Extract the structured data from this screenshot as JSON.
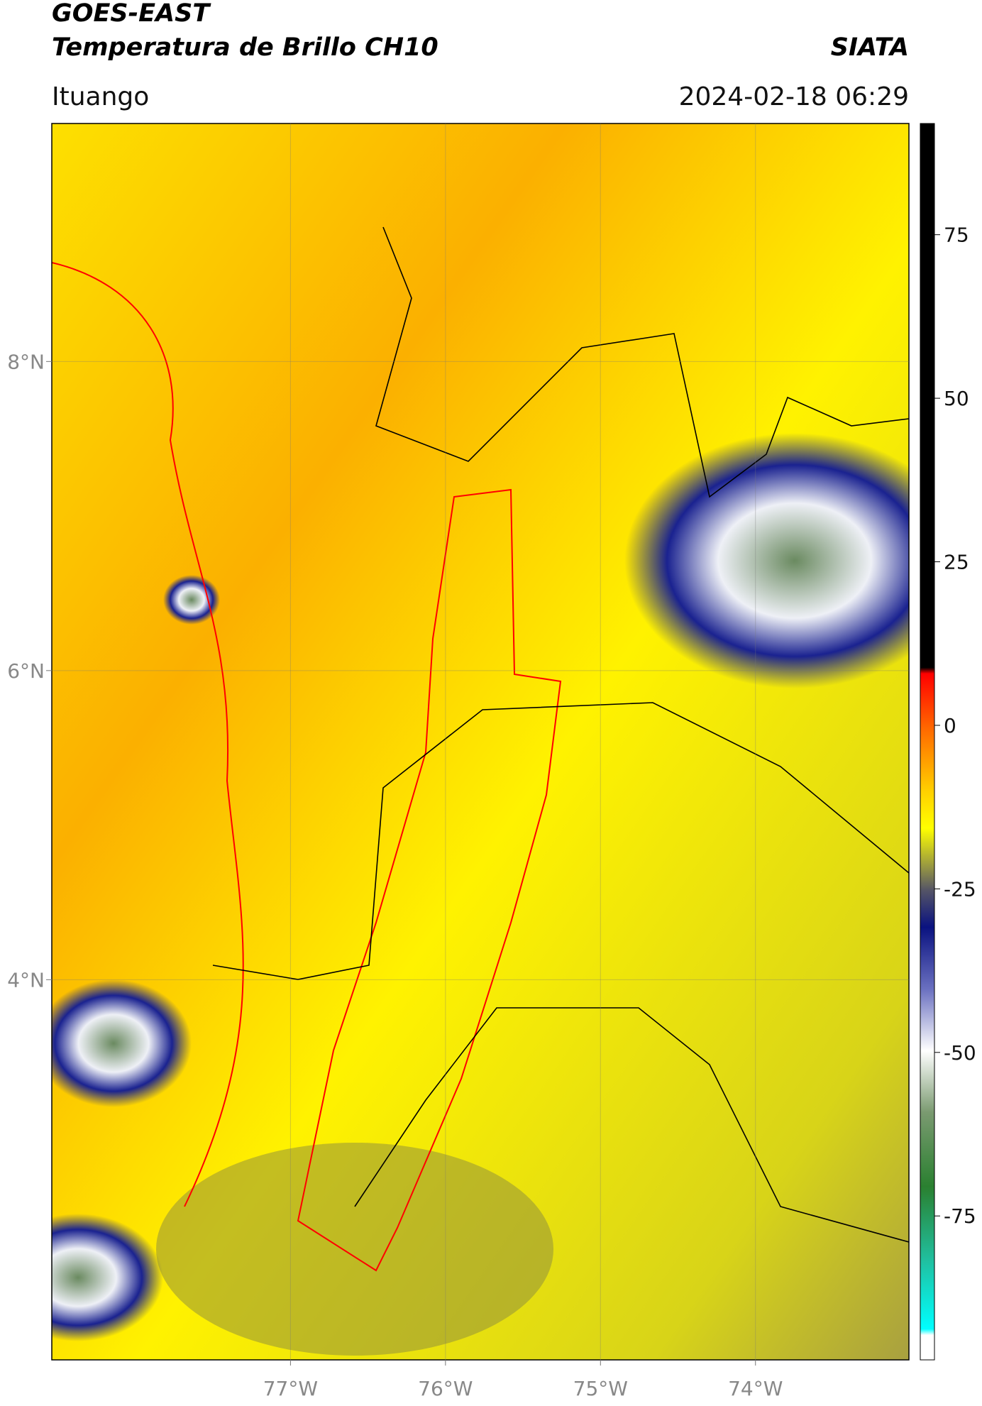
{
  "header": {
    "satellite": "GOES-EAST",
    "product": "Temperatura de Brillo CH10",
    "agency": "SIATA",
    "location": "Ituango",
    "datetime": "2024-02-18 06:29"
  },
  "map": {
    "xlim": [
      -78.54,
      -73.01
    ],
    "ylim": [
      1.54,
      9.54
    ],
    "xticks": [
      {
        "value": -77,
        "label": "77°W"
      },
      {
        "value": -76,
        "label": "76°W"
      },
      {
        "value": -75,
        "label": "75°W"
      },
      {
        "value": -74,
        "label": "74°W"
      }
    ],
    "yticks": [
      {
        "value": 8,
        "label": "8°N"
      },
      {
        "value": 6,
        "label": "6°N"
      },
      {
        "value": 4,
        "label": "4°N"
      }
    ]
  },
  "colorbar": {
    "lim": [
      -97,
      92
    ],
    "ticks": [
      75,
      50,
      25,
      0,
      -25,
      -50,
      -75
    ]
  }
}
